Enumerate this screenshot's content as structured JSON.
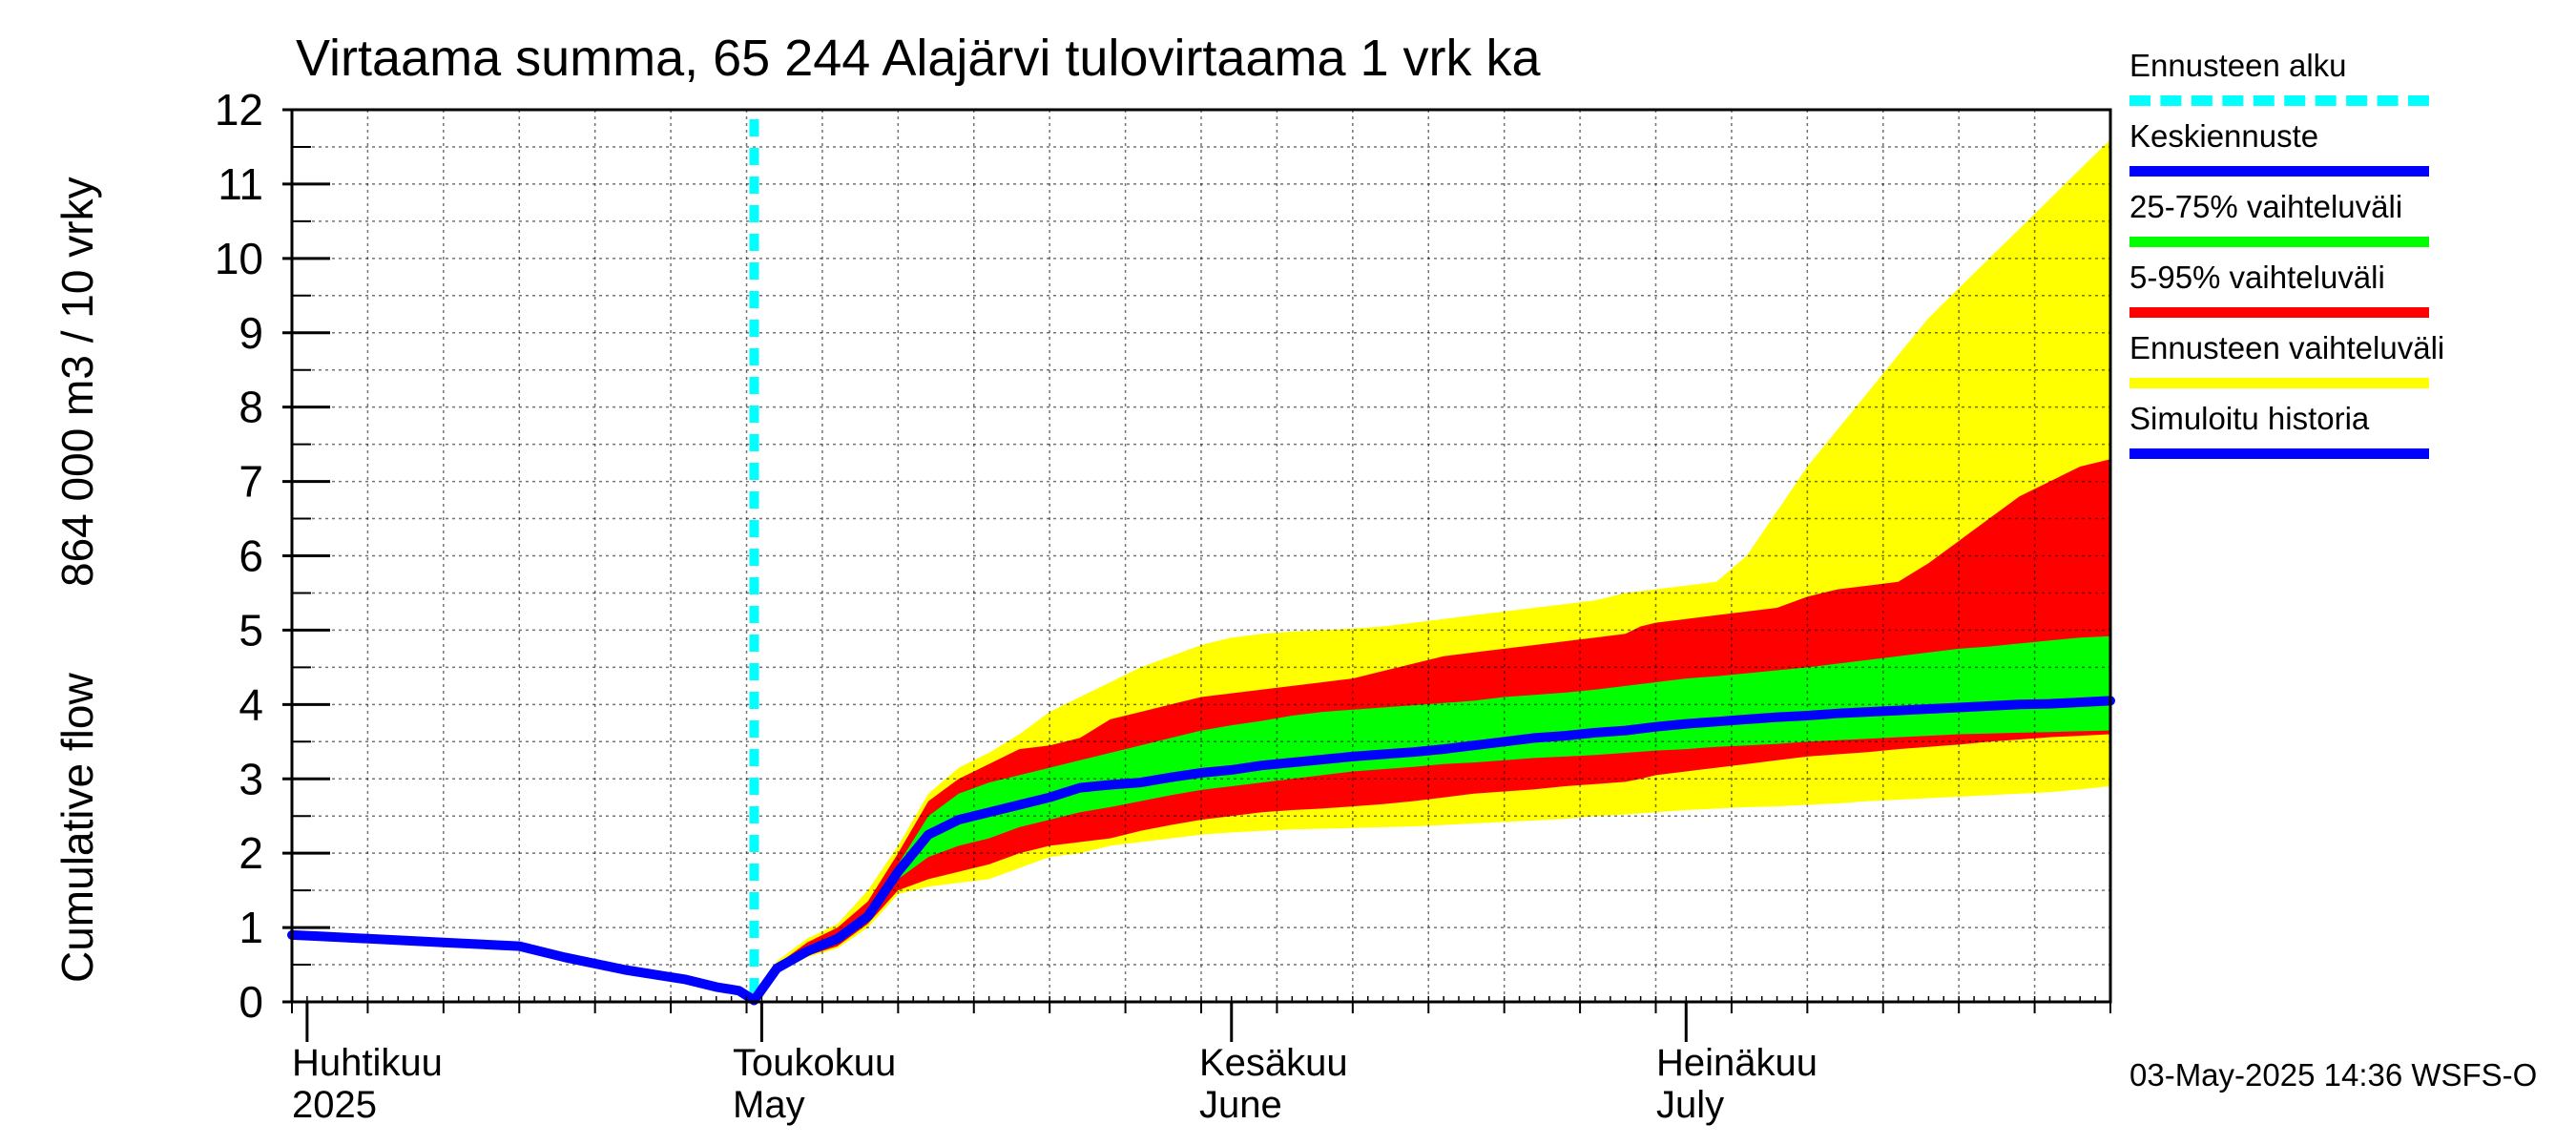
{
  "title": "Virtaama summa, 65 244 Alajärvi tulovirtaama 1 vrk ka",
  "ylabel_line1": "Cumulative flow",
  "ylabel_line2": "864 000 m3 / 10 vrky",
  "legend": [
    {
      "label": "Ennusteen alku",
      "color": "#00ffff",
      "style": "dashed"
    },
    {
      "label": "Keskiennuste",
      "color": "#0000ff",
      "style": "solid"
    },
    {
      "label": "25-75% vaihteluväli",
      "color": "#00ff00",
      "style": "solid"
    },
    {
      "label": "5-95% vaihteluväli",
      "color": "#ff0000",
      "style": "solid"
    },
    {
      "label": "Ennusteen vaihteluväli",
      "color": "#ffff00",
      "style": "solid"
    },
    {
      "label": "Simuloitu historia",
      "color": "#0000ff",
      "style": "solid"
    }
  ],
  "footer": "03-May-2025 14:36 WSFS-O",
  "x_labels": [
    {
      "line1": "Huhtikuu",
      "line2": "2025",
      "day": 1
    },
    {
      "line1": "Toukokuu",
      "line2": "May",
      "day": 31
    },
    {
      "line1": "Kesäkuu",
      "line2": "June",
      "day": 62
    },
    {
      "line1": "Heinäkuu",
      "line2": "July",
      "day": 92
    }
  ],
  "chart_data": {
    "type": "area",
    "title": "Virtaama summa, 65 244 Alajärvi tulovirtaama 1 vrk ka",
    "xlabel": "",
    "ylabel": "Cumulative flow 864 000 m3 / 10 vrky",
    "x_unit": "days since 31-Mar-2025",
    "xlim": [
      0,
      120
    ],
    "ylim": [
      0,
      12
    ],
    "y_ticks": [
      0,
      1,
      2,
      3,
      4,
      5,
      6,
      7,
      8,
      9,
      10,
      11,
      12
    ],
    "grid": true,
    "legend_position": "right",
    "forecast_start_day": 30.5,
    "month_boundaries": [
      1,
      31,
      62,
      92
    ],
    "history": {
      "name": "Simuloitu historia",
      "x": [
        0,
        2,
        10,
        15,
        18,
        22,
        26,
        28,
        29.5,
        30.5
      ],
      "y": [
        0.9,
        0.88,
        0.8,
        0.75,
        0.6,
        0.43,
        0.3,
        0.2,
        0.15,
        0.02
      ]
    },
    "series": [
      {
        "name": "Ennusteen vaihteluväli",
        "x": [
          30.5,
          32,
          34,
          36,
          38,
          40,
          42,
          44,
          46,
          48,
          50,
          52,
          54,
          56,
          58,
          60,
          62,
          64,
          66,
          68,
          70,
          72,
          74,
          76,
          78,
          80,
          82,
          84,
          86,
          88,
          90,
          92,
          94,
          96,
          98,
          100,
          102,
          104,
          106,
          108,
          110,
          112,
          114,
          116,
          118,
          120
        ],
        "upper": [
          0.05,
          0.55,
          0.85,
          1.05,
          1.5,
          2.1,
          2.8,
          3.15,
          3.35,
          3.6,
          3.9,
          4.1,
          4.3,
          4.5,
          4.65,
          4.8,
          4.9,
          4.95,
          4.98,
          5.0,
          5.02,
          5.05,
          5.1,
          5.15,
          5.2,
          5.25,
          5.3,
          5.35,
          5.4,
          5.5,
          5.55,
          5.6,
          5.65,
          6.0,
          6.6,
          7.2,
          7.7,
          8.2,
          8.7,
          9.2,
          9.6,
          10.0,
          10.4,
          10.8,
          11.2,
          11.6
        ],
        "lower": [
          0.0,
          0.4,
          0.6,
          0.72,
          1.0,
          1.45,
          1.55,
          1.6,
          1.65,
          1.8,
          1.95,
          2.0,
          2.1,
          2.15,
          2.2,
          2.25,
          2.28,
          2.3,
          2.32,
          2.33,
          2.34,
          2.35,
          2.36,
          2.38,
          2.4,
          2.42,
          2.44,
          2.46,
          2.5,
          2.52,
          2.55,
          2.58,
          2.6,
          2.62,
          2.63,
          2.65,
          2.67,
          2.7,
          2.72,
          2.74,
          2.76,
          2.78,
          2.8,
          2.82,
          2.86,
          2.9
        ]
      },
      {
        "name": "5-95% vaihteluväli",
        "x": [
          30.5,
          32,
          34,
          36,
          38,
          40,
          42,
          44,
          46,
          48,
          50,
          52,
          54,
          56,
          58,
          60,
          62,
          64,
          66,
          68,
          70,
          72,
          74,
          76,
          78,
          80,
          82,
          84,
          86,
          88,
          89,
          90,
          92,
          94,
          96,
          98,
          100,
          102,
          104,
          106,
          108,
          110,
          112,
          114,
          116,
          118,
          120
        ],
        "upper": [
          0.05,
          0.5,
          0.8,
          1.0,
          1.35,
          2.0,
          2.7,
          3.0,
          3.2,
          3.4,
          3.45,
          3.55,
          3.8,
          3.9,
          4.0,
          4.1,
          4.15,
          4.2,
          4.25,
          4.3,
          4.35,
          4.45,
          4.55,
          4.65,
          4.7,
          4.75,
          4.8,
          4.85,
          4.9,
          4.95,
          5.05,
          5.1,
          5.15,
          5.2,
          5.25,
          5.3,
          5.45,
          5.55,
          5.6,
          5.65,
          5.9,
          6.2,
          6.5,
          6.8,
          7.0,
          7.2,
          7.3
        ],
        "lower": [
          0.0,
          0.42,
          0.62,
          0.75,
          1.05,
          1.5,
          1.65,
          1.75,
          1.85,
          2.0,
          2.1,
          2.15,
          2.2,
          2.3,
          2.38,
          2.45,
          2.5,
          2.55,
          2.58,
          2.6,
          2.63,
          2.66,
          2.7,
          2.75,
          2.8,
          2.83,
          2.86,
          2.9,
          2.93,
          2.96,
          3.0,
          3.05,
          3.1,
          3.15,
          3.2,
          3.25,
          3.3,
          3.33,
          3.36,
          3.4,
          3.43,
          3.46,
          3.5,
          3.53,
          3.56,
          3.58,
          3.6
        ]
      },
      {
        "name": "25-75% vaihteluväli",
        "x": [
          30.5,
          32,
          34,
          36,
          38,
          40,
          42,
          44,
          46,
          48,
          50,
          52,
          54,
          56,
          58,
          60,
          62,
          64,
          66,
          68,
          70,
          72,
          74,
          76,
          78,
          80,
          82,
          84,
          86,
          88,
          90,
          92,
          94,
          96,
          98,
          100,
          102,
          104,
          106,
          108,
          110,
          112,
          114,
          116,
          118,
          120
        ],
        "upper": [
          0.04,
          0.46,
          0.72,
          0.9,
          1.2,
          1.85,
          2.5,
          2.8,
          2.95,
          3.05,
          3.15,
          3.25,
          3.35,
          3.45,
          3.55,
          3.65,
          3.72,
          3.78,
          3.85,
          3.9,
          3.93,
          3.96,
          3.99,
          4.02,
          4.05,
          4.1,
          4.13,
          4.16,
          4.2,
          4.25,
          4.3,
          4.35,
          4.38,
          4.42,
          4.46,
          4.5,
          4.55,
          4.6,
          4.65,
          4.7,
          4.75,
          4.78,
          4.82,
          4.86,
          4.9,
          4.92
        ],
        "lower": [
          0.01,
          0.44,
          0.66,
          0.8,
          1.1,
          1.65,
          1.95,
          2.1,
          2.2,
          2.35,
          2.45,
          2.55,
          2.62,
          2.7,
          2.78,
          2.85,
          2.9,
          2.95,
          3.0,
          3.05,
          3.1,
          3.13,
          3.16,
          3.2,
          3.22,
          3.25,
          3.28,
          3.3,
          3.32,
          3.35,
          3.38,
          3.4,
          3.43,
          3.45,
          3.47,
          3.5,
          3.52,
          3.54,
          3.56,
          3.58,
          3.6,
          3.61,
          3.62,
          3.63,
          3.64,
          3.65
        ]
      },
      {
        "name": "Keskiennuste",
        "x": [
          30.5,
          32,
          34,
          36,
          38,
          40,
          42,
          44,
          46,
          48,
          50,
          52,
          54,
          56,
          58,
          60,
          62,
          64,
          66,
          68,
          70,
          72,
          74,
          76,
          78,
          80,
          82,
          84,
          86,
          88,
          90,
          92,
          94,
          96,
          98,
          100,
          102,
          104,
          106,
          108,
          110,
          112,
          114,
          116,
          118,
          120
        ],
        "y": [
          0.02,
          0.45,
          0.68,
          0.85,
          1.15,
          1.75,
          2.25,
          2.45,
          2.55,
          2.65,
          2.75,
          2.88,
          2.92,
          2.95,
          3.02,
          3.08,
          3.12,
          3.18,
          3.22,
          3.26,
          3.3,
          3.33,
          3.36,
          3.4,
          3.45,
          3.5,
          3.55,
          3.58,
          3.62,
          3.65,
          3.7,
          3.74,
          3.77,
          3.8,
          3.83,
          3.85,
          3.88,
          3.9,
          3.92,
          3.94,
          3.96,
          3.98,
          4.0,
          4.01,
          4.03,
          4.05
        ]
      }
    ]
  }
}
